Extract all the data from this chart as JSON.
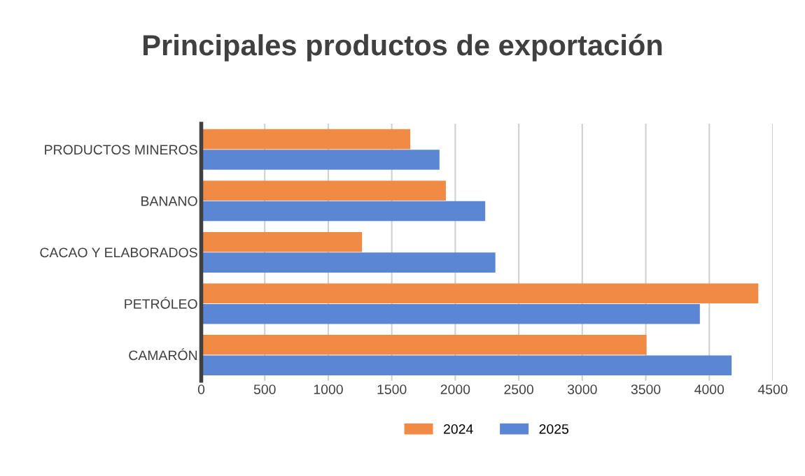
{
  "chart_data": {
    "type": "bar",
    "orientation": "horizontal",
    "title": "Principales productos de exportación",
    "categories": [
      "PRODUCTOS MINEROS",
      "BANANO",
      "CACAO Y ELABORADOS",
      "PETRÓLEO",
      "CAMARÓN"
    ],
    "series": [
      {
        "name": "2024",
        "color": "#f08a45",
        "values": [
          1640,
          1920,
          1260,
          4380,
          3500
        ]
      },
      {
        "name": "2025",
        "color": "#5b86d3",
        "values": [
          1870,
          2230,
          2310,
          3920,
          4170
        ]
      }
    ],
    "xlim": [
      0,
      4500
    ],
    "xticks": [
      0,
      500,
      1000,
      1500,
      2000,
      2500,
      3000,
      3500,
      4000,
      4500
    ],
    "grid": "x",
    "legend": "bottom"
  }
}
